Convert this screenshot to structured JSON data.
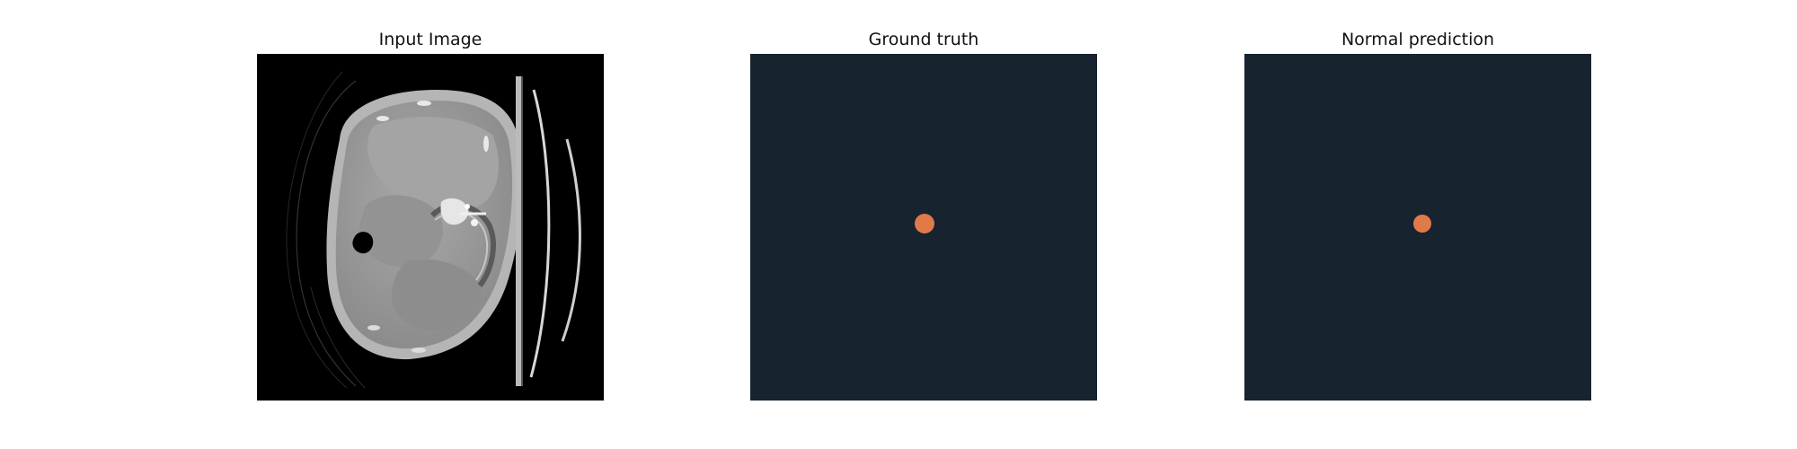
{
  "figure": {
    "panels": [
      {
        "title": "Input Image",
        "kind": "ct-scan",
        "colormap": "grayscale"
      },
      {
        "title": "Ground truth",
        "kind": "segmentation-mask",
        "background_color": "#17232E",
        "mask_color": "#E07A48"
      },
      {
        "title": "Normal prediction",
        "kind": "segmentation-mask",
        "background_color": "#17232E",
        "mask_color": "#E07A48"
      }
    ]
  }
}
